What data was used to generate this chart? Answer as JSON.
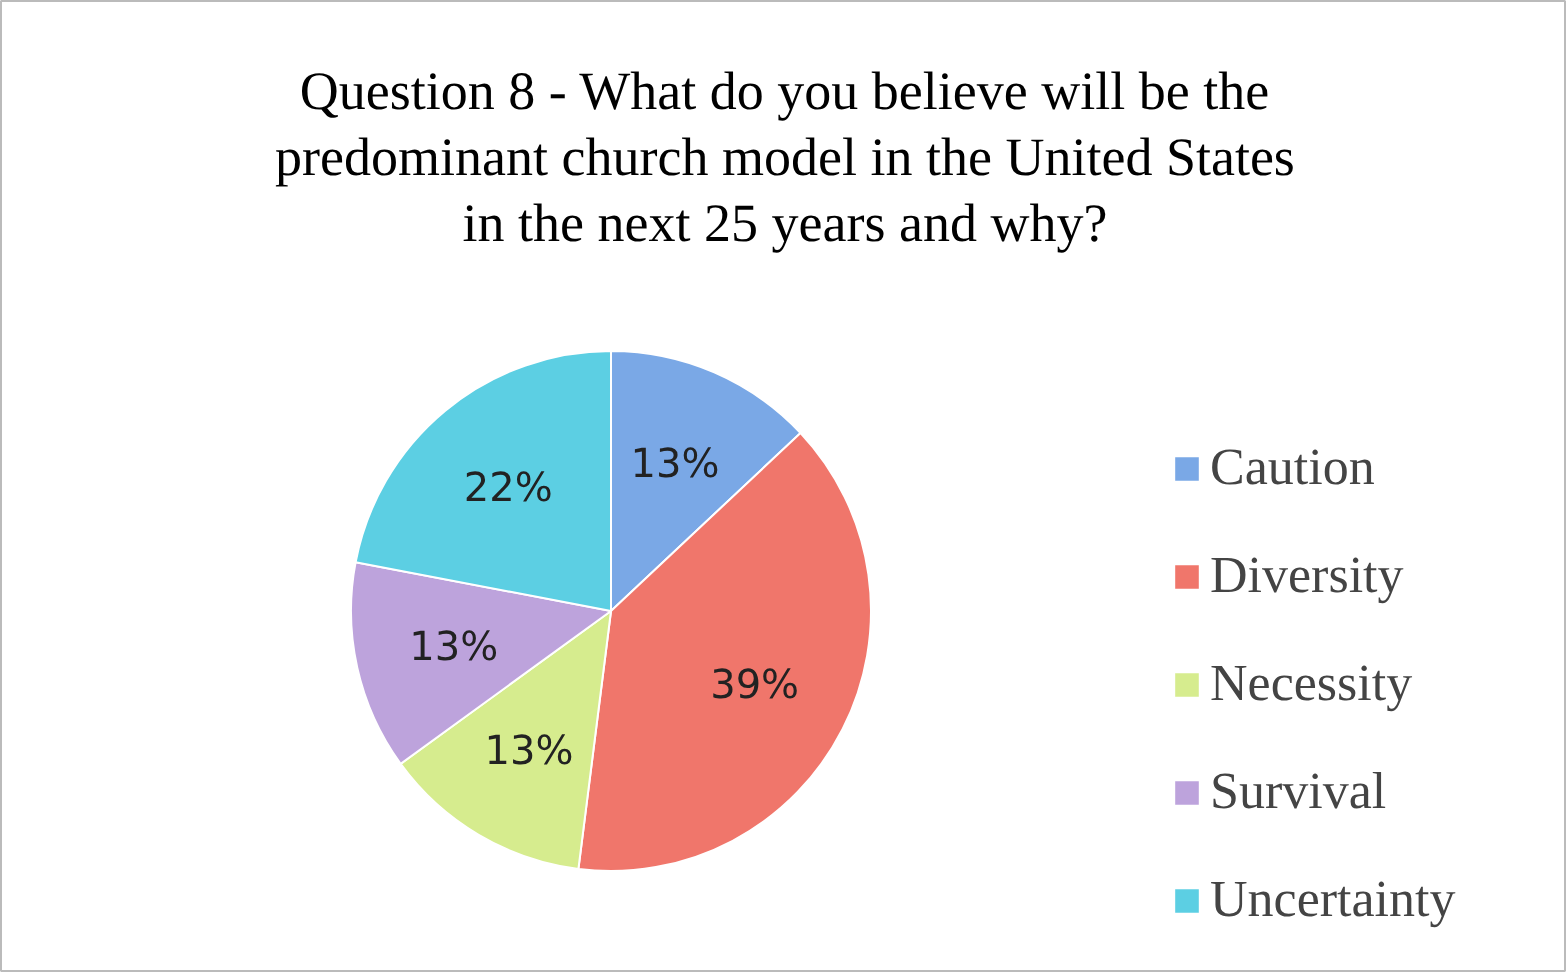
{
  "chart_data": {
    "type": "pie",
    "title": "Question 8 - What do you believe will be the predominant church model in the United States in the next 25 years and why?",
    "categories": [
      "Caution",
      "Diversity",
      "Necessity",
      "Survival",
      "Uncertainty"
    ],
    "values": [
      13,
      39,
      13,
      13,
      22
    ],
    "value_labels": [
      "13%",
      "39%",
      "13%",
      "13%",
      "22%"
    ],
    "colors": [
      "#7aa8e6",
      "#f0766b",
      "#d6ec8e",
      "#bda3dc",
      "#5ccfe3"
    ],
    "legend": "right"
  }
}
